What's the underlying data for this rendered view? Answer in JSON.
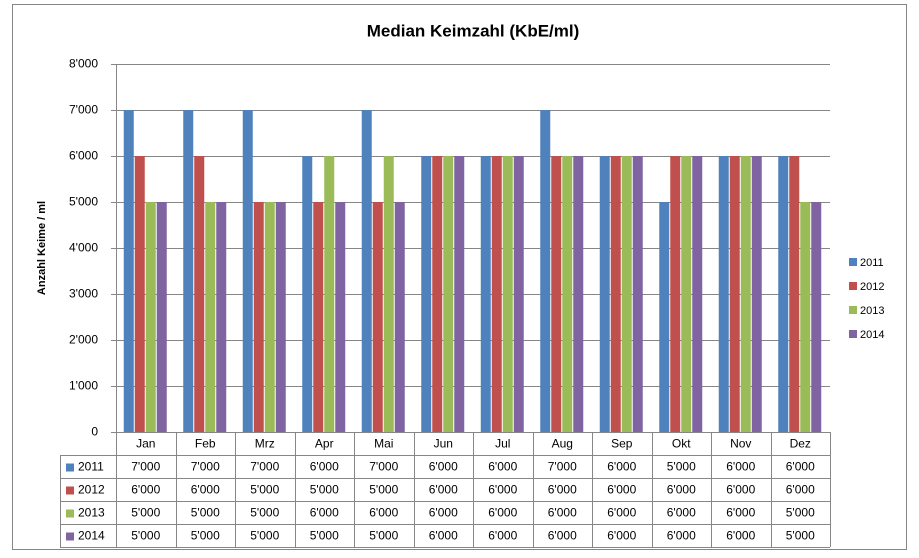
{
  "chart_data": {
    "type": "bar",
    "title": "Median Keimzahl (KbE/ml)",
    "y_label": "Anzahl Keime / ml",
    "categories": [
      "Jan",
      "Feb",
      "Mrz",
      "Apr",
      "Mai",
      "Jun",
      "Jul",
      "Aug",
      "Sep",
      "Okt",
      "Nov",
      "Dez"
    ],
    "series": [
      {
        "name": "2011",
        "color": "#4f81bd",
        "values": [
          7000,
          7000,
          7000,
          6000,
          7000,
          6000,
          6000,
          7000,
          6000,
          5000,
          6000,
          6000
        ],
        "value_labels": [
          "7'000",
          "7'000",
          "7'000",
          "6'000",
          "7'000",
          "6'000",
          "6'000",
          "7'000",
          "6'000",
          "5'000",
          "6'000",
          "6'000"
        ]
      },
      {
        "name": "2012",
        "color": "#c0504d",
        "values": [
          6000,
          6000,
          5000,
          5000,
          5000,
          6000,
          6000,
          6000,
          6000,
          6000,
          6000,
          6000
        ],
        "value_labels": [
          "6'000",
          "6'000",
          "5'000",
          "5'000",
          "5'000",
          "6'000",
          "6'000",
          "6'000",
          "6'000",
          "6'000",
          "6'000",
          "6'000"
        ]
      },
      {
        "name": "2013",
        "color": "#9bbb59",
        "values": [
          5000,
          5000,
          5000,
          6000,
          6000,
          6000,
          6000,
          6000,
          6000,
          6000,
          6000,
          5000
        ],
        "value_labels": [
          "5'000",
          "5'000",
          "5'000",
          "6'000",
          "6'000",
          "6'000",
          "6'000",
          "6'000",
          "6'000",
          "6'000",
          "6'000",
          "5'000"
        ]
      },
      {
        "name": "2014",
        "color": "#8064a2",
        "values": [
          5000,
          5000,
          5000,
          5000,
          5000,
          6000,
          6000,
          6000,
          6000,
          6000,
          6000,
          5000
        ],
        "value_labels": [
          "5'000",
          "5'000",
          "5'000",
          "5'000",
          "5'000",
          "6'000",
          "6'000",
          "6'000",
          "6'000",
          "6'000",
          "6'000",
          "5'000"
        ]
      }
    ],
    "ylim": [
      0,
      8000
    ],
    "yticks": [
      0,
      {
        "value": 1000,
        "label": "1'000"
      },
      {
        "value": 2000,
        "label": "2'000"
      },
      {
        "value": 3000,
        "label": "3'000"
      },
      {
        "value": 4000,
        "label": "4'000"
      },
      {
        "value": 5000,
        "label": "5'000"
      },
      {
        "value": 6000,
        "label": "6'000"
      },
      {
        "value": 7000,
        "label": "7'000"
      },
      {
        "value": 8000,
        "label": "8'000"
      }
    ],
    "grid": true,
    "legend": "right"
  }
}
